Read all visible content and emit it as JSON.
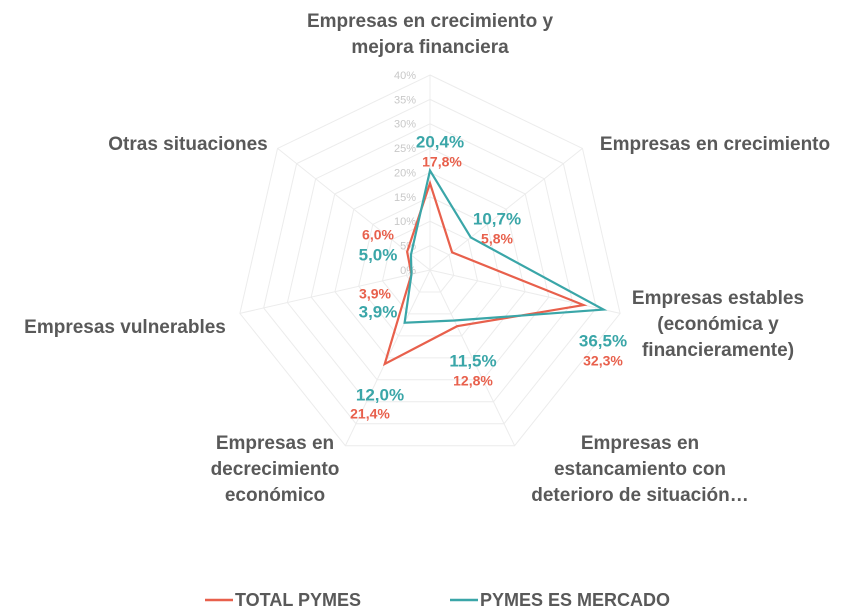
{
  "chart_data": {
    "type": "radar",
    "categories": [
      "Empresas en crecimiento y mejora financiera",
      "Empresas en crecimiento",
      "Empresas estables (económica y financieramente)",
      "Empresas en estancamiento con deterioro de situación…",
      "Empresas en decrecimiento económico",
      "Empresas vulnerables",
      "Otras situaciones"
    ],
    "series": [
      {
        "name": "TOTAL PYMES",
        "color": "#e8604c",
        "values": [
          17.8,
          5.8,
          32.3,
          12.8,
          21.4,
          3.9,
          6.0
        ],
        "value_labels": [
          "17,8%",
          "5,8%",
          "32,3%",
          "12,8%",
          "21,4%",
          "3,9%",
          "6,0%"
        ]
      },
      {
        "name": "PYMES ES MERCADO",
        "color": "#3aa6a8",
        "values": [
          20.4,
          10.7,
          36.5,
          11.5,
          12.0,
          3.9,
          5.0
        ],
        "value_labels": [
          "20,4%",
          "10,7%",
          "36,5%",
          "11,5%",
          "12,0%",
          "3,9%",
          "5,0%"
        ]
      }
    ],
    "ylim": [
      0,
      40
    ],
    "yticks": [
      {
        "value": 0,
        "label": "0%"
      },
      {
        "value": 5,
        "label": "5%"
      },
      {
        "value": 10,
        "label": "10%"
      },
      {
        "value": 15,
        "label": "15%"
      },
      {
        "value": 20,
        "label": "20%"
      },
      {
        "value": 25,
        "label": "25%"
      },
      {
        "value": 30,
        "label": "30%"
      },
      {
        "value": 35,
        "label": "35%"
      },
      {
        "value": 40,
        "label": "40%"
      }
    ],
    "grid": true,
    "legend": "bottom"
  }
}
